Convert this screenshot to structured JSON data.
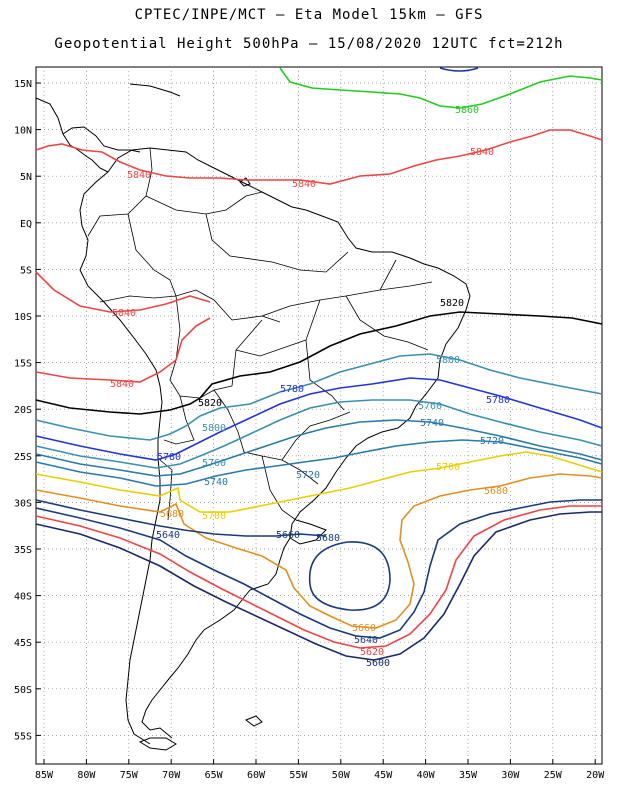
{
  "title_line1": "CPTEC/INPE/MCT –  Eta Model 15km – GFS",
  "title_line2": "Geopotential Height 500hPa – 15/08/2020 12UTC fct=212h",
  "lat_labels": [
    "15N",
    "10N",
    "5N",
    "EQ",
    "5S",
    "10S",
    "15S",
    "20S",
    "25S",
    "30S",
    "35S",
    "40S",
    "45S",
    "50S",
    "55S"
  ],
  "lon_labels": [
    "85W",
    "80W",
    "75W",
    "70W",
    "65W",
    "60W",
    "55W",
    "50W",
    "45W",
    "40W",
    "35W",
    "30W",
    "25W",
    "20W"
  ],
  "contour_labels": [
    {
      "id": "c5860",
      "text": "5860",
      "color": "#22cc22"
    },
    {
      "id": "c5840a",
      "text": "5840",
      "color": "#ee4444"
    },
    {
      "id": "c5840b",
      "text": "5840",
      "color": "#ee4444"
    },
    {
      "id": "c5840c",
      "text": "5840",
      "color": "#ee4444"
    },
    {
      "id": "c5840d",
      "text": "5840",
      "color": "#ee4444"
    },
    {
      "id": "c5840e",
      "text": "5840",
      "color": "#ee4444"
    },
    {
      "id": "c5820a",
      "text": "5820",
      "color": "#000000"
    },
    {
      "id": "c5820b",
      "text": "5820",
      "color": "#000000"
    },
    {
      "id": "c5800a",
      "text": "5800",
      "color": "#3a8fb0"
    },
    {
      "id": "c5800b",
      "text": "5800",
      "color": "#3a8fb0"
    },
    {
      "id": "c5780a",
      "text": "5780",
      "color": "#2233dd"
    },
    {
      "id": "c5780b",
      "text": "5780",
      "color": "#2233dd"
    },
    {
      "id": "c5780c",
      "text": "5780",
      "color": "#2233dd"
    },
    {
      "id": "c5760a",
      "text": "5760",
      "color": "#3a8fb0"
    },
    {
      "id": "c5760b",
      "text": "5760",
      "color": "#3a8fb0"
    },
    {
      "id": "c5740a",
      "text": "5740",
      "color": "#2a7aa8"
    },
    {
      "id": "c5740b",
      "text": "5740",
      "color": "#2a7aa8"
    },
    {
      "id": "c5720a",
      "text": "5720",
      "color": "#2a7aa8"
    },
    {
      "id": "c5720b",
      "text": "5720",
      "color": "#2a7aa8"
    },
    {
      "id": "c5700a",
      "text": "5700",
      "color": "#e6d000"
    },
    {
      "id": "c5700b",
      "text": "5700",
      "color": "#e6d000"
    },
    {
      "id": "c5680a",
      "text": "5680",
      "color": "#e09020"
    },
    {
      "id": "c5680b",
      "text": "5680",
      "color": "#e09020"
    },
    {
      "id": "c5660a",
      "text": "5660",
      "color": "#e09020"
    },
    {
      "id": "c5660b",
      "text": "5660",
      "color": "#1a3a7a"
    },
    {
      "id": "c5680c",
      "text": "5680",
      "color": "#1a3a7a"
    },
    {
      "id": "c5640",
      "text": "5640",
      "color": "#1a3a7a"
    },
    {
      "id": "c5640b",
      "text": "5640",
      "color": "#1a3a7a"
    },
    {
      "id": "c5620",
      "text": "5620",
      "color": "#ee4444"
    },
    {
      "id": "c5600",
      "text": "5600",
      "color": "#1a2a6a"
    },
    {
      "id": "c5660c",
      "text": "5660",
      "color": "#e09020"
    }
  ],
  "colors": {
    "frame": "#000000",
    "grid": "#888888",
    "coast": "#000000"
  }
}
